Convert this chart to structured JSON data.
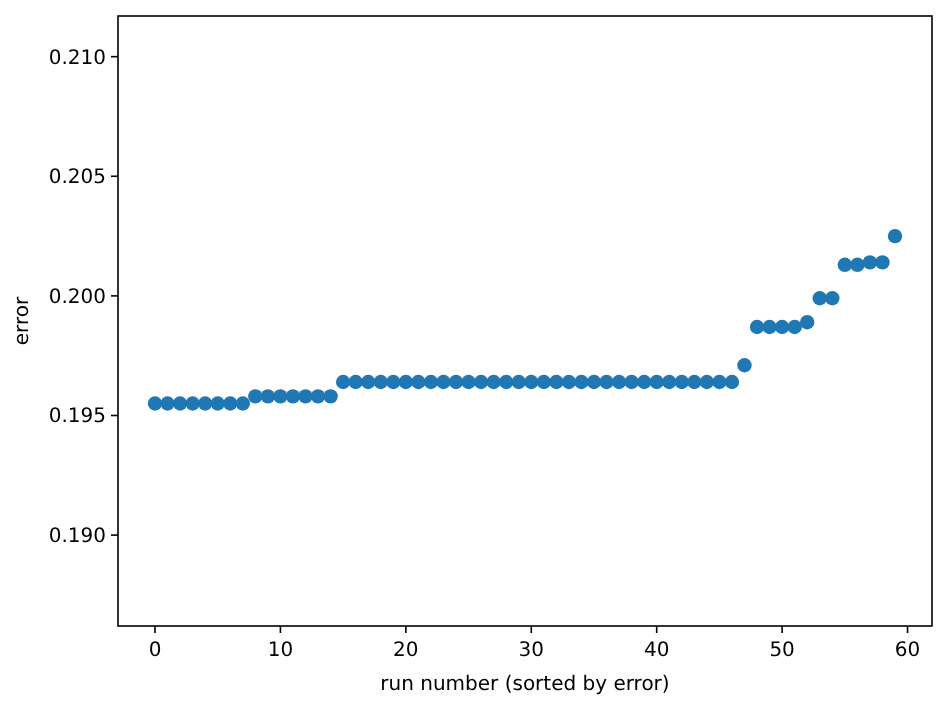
{
  "chart_data": {
    "type": "scatter",
    "xlabel": "run number (sorted by error)",
    "ylabel": "error",
    "x": [
      0,
      1,
      2,
      3,
      4,
      5,
      6,
      7,
      8,
      9,
      10,
      11,
      12,
      13,
      14,
      15,
      16,
      17,
      18,
      19,
      20,
      21,
      22,
      23,
      24,
      25,
      26,
      27,
      28,
      29,
      30,
      31,
      32,
      33,
      34,
      35,
      36,
      37,
      38,
      39,
      40,
      41,
      42,
      43,
      44,
      45,
      46,
      47,
      48,
      49,
      50,
      51,
      52,
      53,
      54,
      55,
      56,
      57,
      58,
      59
    ],
    "series": [
      {
        "color": "#1f77b4",
        "values": [
          0.1955,
          0.1955,
          0.1955,
          0.1955,
          0.1955,
          0.1955,
          0.1955,
          0.1955,
          0.1958,
          0.1958,
          0.1958,
          0.1958,
          0.1958,
          0.1958,
          0.1958,
          0.1964,
          0.1964,
          0.1964,
          0.1964,
          0.1964,
          0.1964,
          0.1964,
          0.1964,
          0.1964,
          0.1964,
          0.1964,
          0.1964,
          0.1964,
          0.1964,
          0.1964,
          0.1964,
          0.1964,
          0.1964,
          0.1964,
          0.1964,
          0.1964,
          0.1964,
          0.1964,
          0.1964,
          0.1964,
          0.1964,
          0.1964,
          0.1964,
          0.1964,
          0.1964,
          0.1964,
          0.1964,
          0.1971,
          0.1987,
          0.1987,
          0.1987,
          0.1987,
          0.1989,
          0.1999,
          0.1999,
          0.2013,
          0.2013,
          0.2014,
          0.2014,
          0.2025
        ]
      }
    ],
    "xlim": [
      -2.95,
      61.95
    ],
    "ylim": [
      0.1862,
      0.2117
    ],
    "xticks": [
      0,
      10,
      20,
      30,
      40,
      50,
      60
    ],
    "yticks": [
      {
        "value": 0.19,
        "label": "0.190"
      },
      {
        "value": 0.195,
        "label": "0.195"
      },
      {
        "value": 0.2,
        "label": "0.200"
      },
      {
        "value": 0.205,
        "label": "0.205"
      },
      {
        "value": 0.21,
        "label": "0.210"
      }
    ],
    "grid": false,
    "marker": "circle"
  }
}
